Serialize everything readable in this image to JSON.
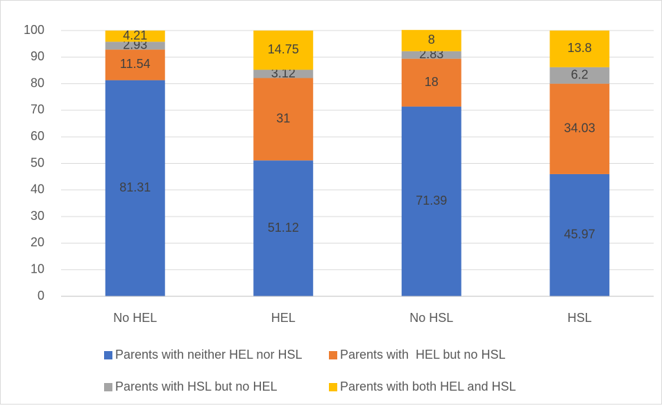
{
  "chart_data": {
    "type": "stacked_bar",
    "categories": [
      "No HEL",
      "HEL",
      "No HSL",
      "HSL"
    ],
    "series": [
      {
        "name": "Parents with neither HEL nor HSL",
        "color": "#4472c4",
        "values": [
          81.31,
          51.12,
          71.39,
          45.97
        ]
      },
      {
        "name": "Parents with  HEL but no HSL",
        "color": "#ed7d31",
        "values": [
          11.54,
          31,
          18,
          34.03
        ]
      },
      {
        "name": "Parents with HSL but no HEL",
        "color": "#a5a5a5",
        "values": [
          2.93,
          3.12,
          2.83,
          6.2
        ]
      },
      {
        "name": "Parents with both HEL and HSL",
        "color": "#ffc000",
        "values": [
          4.21,
          14.75,
          8,
          13.8
        ]
      }
    ],
    "ylim": [
      0,
      100
    ],
    "yticks": [
      0,
      10,
      20,
      30,
      40,
      50,
      60,
      70,
      80,
      90,
      100
    ],
    "grid": true,
    "legend": "bottom"
  }
}
